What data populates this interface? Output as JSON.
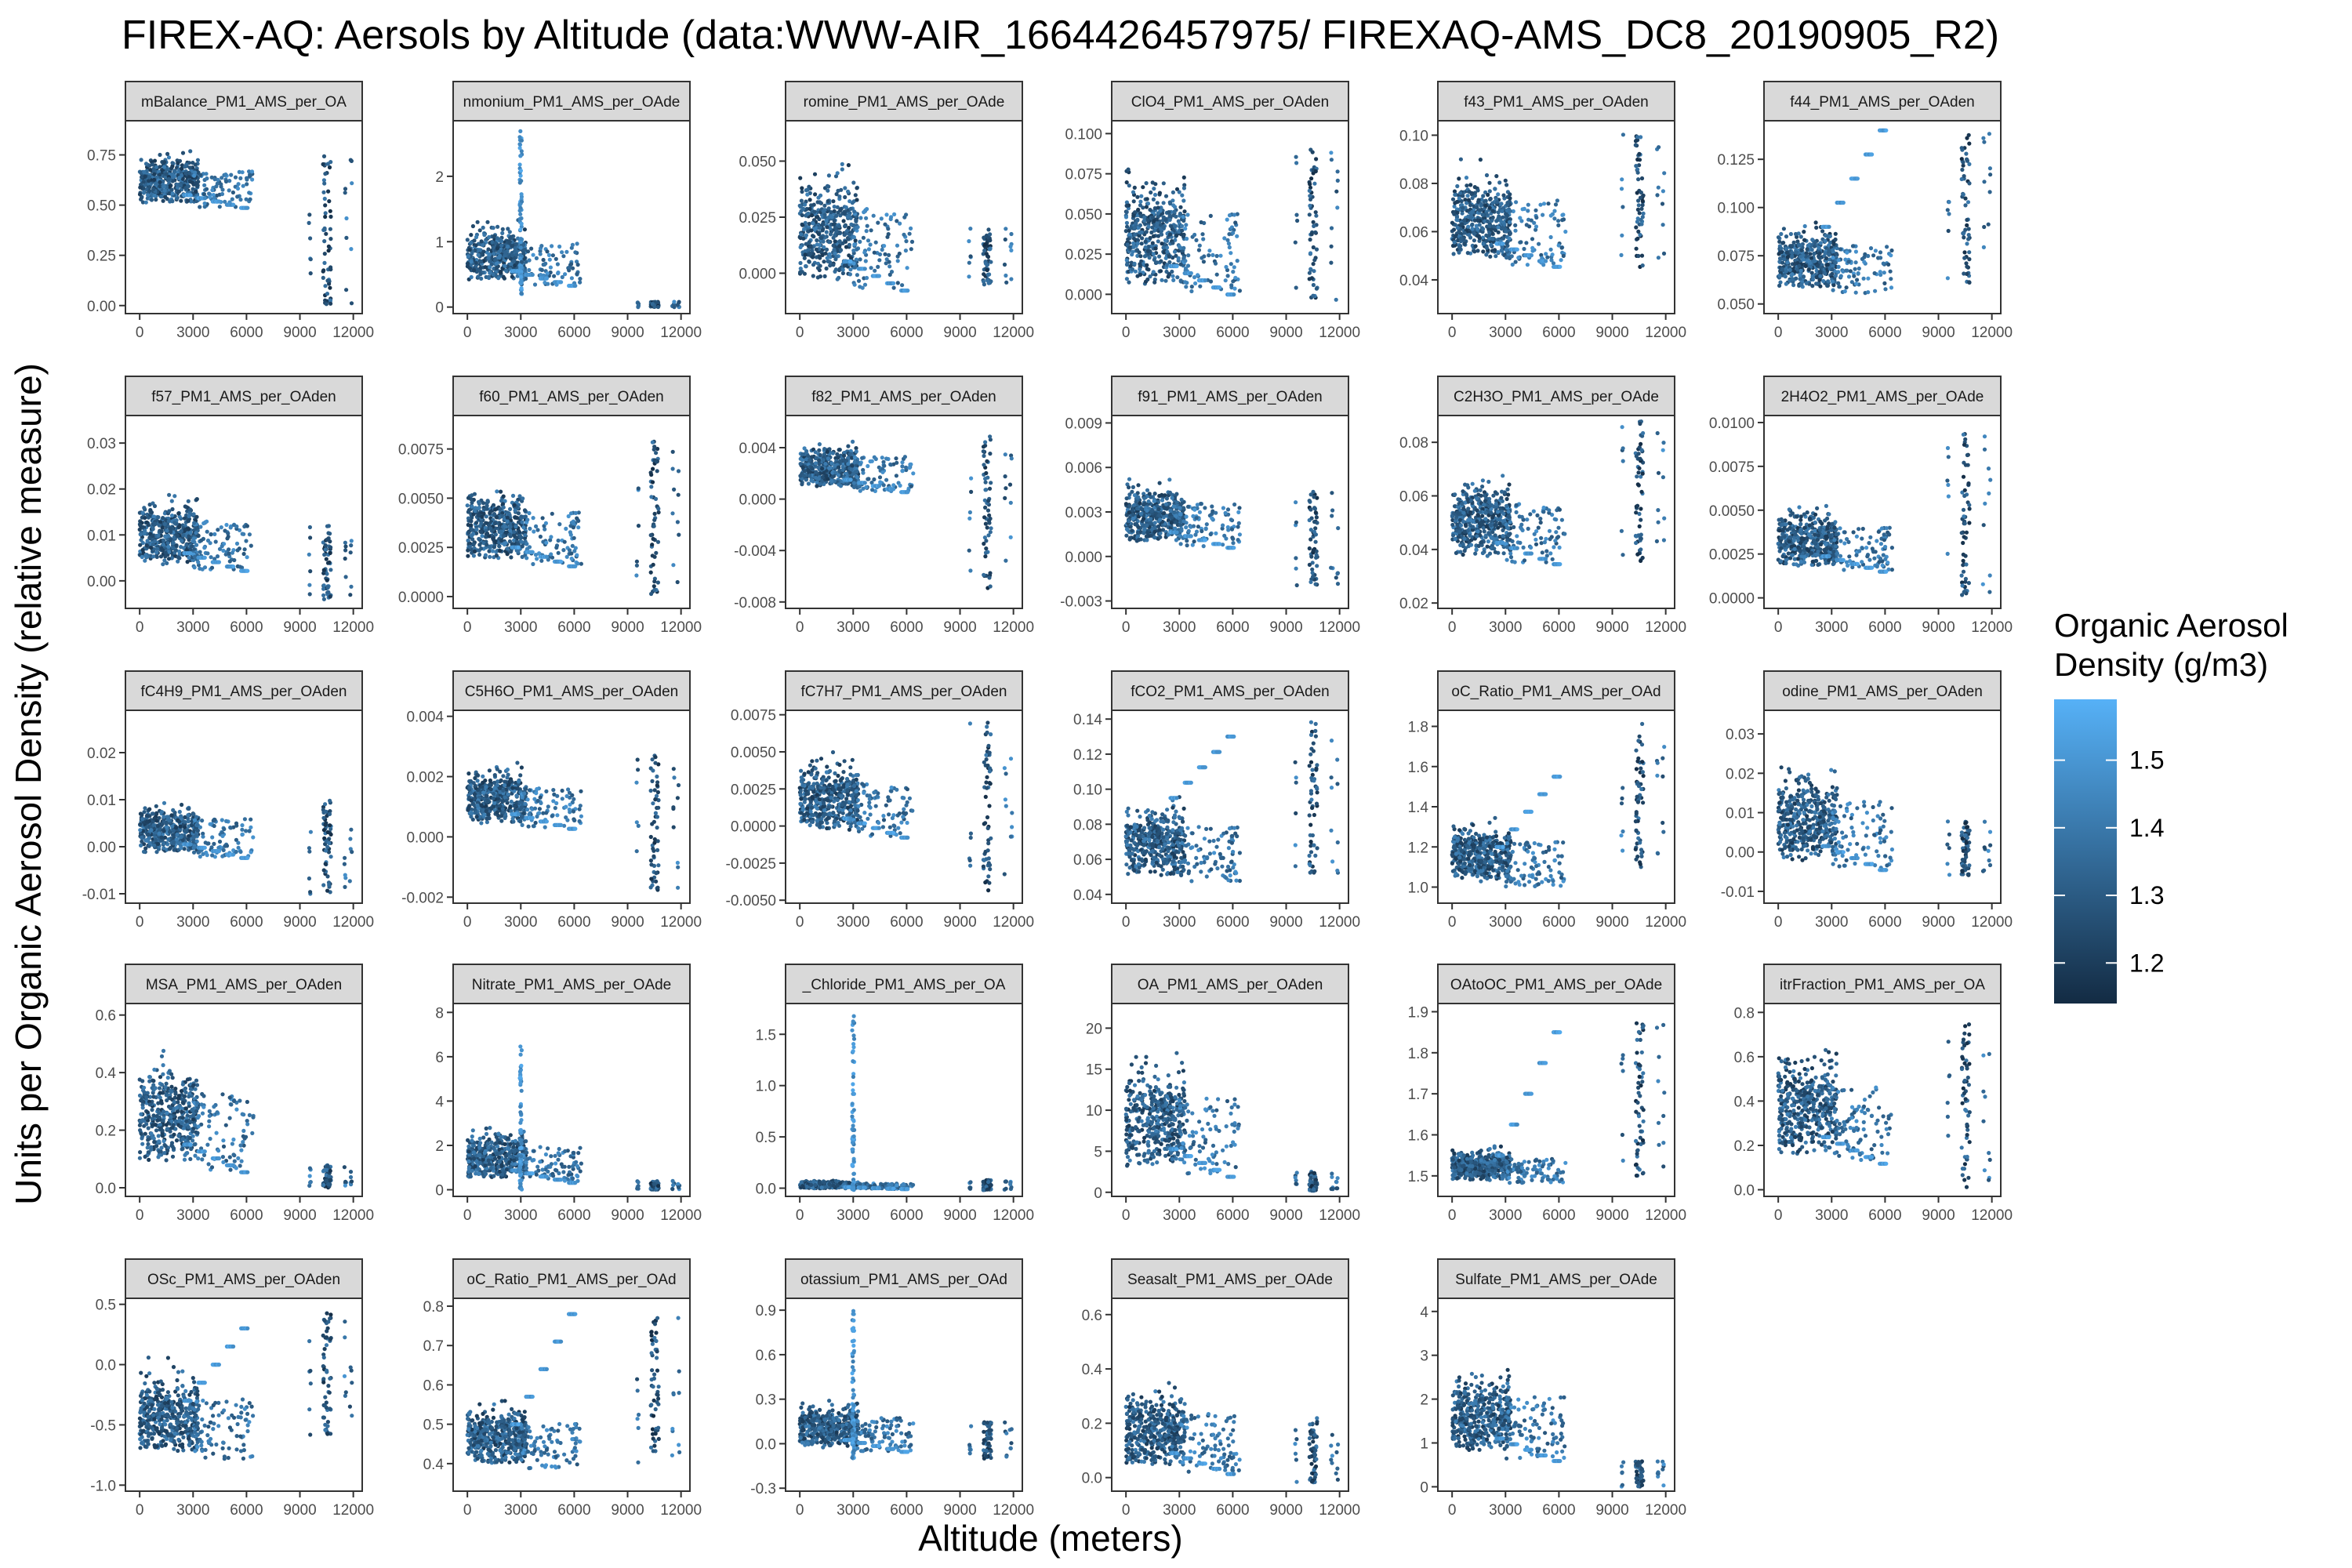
{
  "chart_data": {
    "type": "scatter",
    "title": "FIREX-AQ: Aersols by Altitude (data:WWW-AIR_1664426457975/ FIREXAQ-AMS_DC8_20190905_R2)",
    "xlabel": "Altitude (meters)",
    "ylabel": "Units per Organic Aerosol Density (relative measure)",
    "x_ticks": [
      "0",
      "3000",
      "6000",
      "9000",
      "12000"
    ],
    "xlim": [
      -800,
      12500
    ],
    "color_scale": {
      "title_lines": [
        "Organic Aerosol",
        "Density (g/m3)"
      ],
      "ticks": [
        "1.2",
        "1.3",
        "1.4",
        "1.5"
      ],
      "low": 1.14,
      "high": 1.59,
      "low_color": "#132B43",
      "high_color": "#56B1F7"
    },
    "panels": [
      {
        "strip": "mBalance_PM1_AMS_per_OA",
        "y_ticks": [
          "0.00",
          "0.25",
          "0.50",
          "0.75"
        ],
        "ylim": [
          -0.04,
          0.92
        ],
        "low_band": [
          0.45,
          0.85
        ],
        "high_band": [
          0.0,
          0.75
        ],
        "up_track": null,
        "dense_peak": null
      },
      {
        "strip": "nmonium_PM1_AMS_per_OAde",
        "y_ticks": [
          "0",
          "1",
          "2"
        ],
        "ylim": [
          -0.1,
          2.85
        ],
        "low_band": [
          0.2,
          1.6
        ],
        "high_band": [
          0.0,
          0.08
        ],
        "up_track": null,
        "dense_peak": [
          3000,
          2.7
        ]
      },
      {
        "strip": "romine_PM1_AMS_per_OAde",
        "y_ticks": [
          "0.000",
          "0.025",
          "0.050"
        ],
        "ylim": [
          -0.018,
          0.068
        ],
        "low_band": [
          -0.015,
          0.066
        ],
        "high_band": [
          -0.005,
          0.02
        ],
        "up_track": null,
        "dense_peak": null
      },
      {
        "strip": "ClO4_PM1_AMS_per_OAden",
        "y_ticks": [
          "0.000",
          "0.025",
          "0.050",
          "0.075",
          "0.100"
        ],
        "ylim": [
          -0.012,
          0.108
        ],
        "low_band": [
          -0.01,
          0.1
        ],
        "high_band": [
          -0.005,
          0.09
        ],
        "up_track": null,
        "dense_peak": null
      },
      {
        "strip": "f43_PM1_AMS_per_OAden",
        "y_ticks": [
          "0.04",
          "0.06",
          "0.08",
          "0.10"
        ],
        "ylim": [
          0.026,
          0.106
        ],
        "low_band": [
          0.04,
          0.1
        ],
        "high_band": [
          0.045,
          0.102
        ],
        "up_track": null,
        "dense_peak": null
      },
      {
        "strip": "f44_PM1_AMS_per_OAden",
        "y_ticks": [
          "0.050",
          "0.075",
          "0.100",
          "0.125"
        ],
        "ylim": [
          0.045,
          0.145
        ],
        "low_band": [
          0.05,
          0.105
        ],
        "high_band": [
          0.06,
          0.14
        ],
        "up_track": [
          0.09,
          0.14
        ],
        "dense_peak": null
      },
      {
        "strip": "f57_PM1_AMS_per_OAden",
        "y_ticks": [
          "0.00",
          "0.01",
          "0.02",
          "0.03"
        ],
        "ylim": [
          -0.006,
          0.036
        ],
        "low_band": [
          0.0,
          0.024
        ],
        "high_band": [
          -0.004,
          0.012
        ],
        "up_track": null,
        "dense_peak": null
      },
      {
        "strip": "f60_PM1_AMS_per_OAden",
        "y_ticks": [
          "0.0000",
          "0.0025",
          "0.0050",
          "0.0075"
        ],
        "ylim": [
          -0.0006,
          0.0092
        ],
        "low_band": [
          0.001,
          0.007
        ],
        "high_band": [
          0.0,
          0.008
        ],
        "up_track": null,
        "dense_peak": null
      },
      {
        "strip": "f82_PM1_AMS_per_OAden",
        "y_ticks": [
          "-0.008",
          "-0.004",
          "0.000",
          "0.004"
        ],
        "ylim": [
          -0.0085,
          0.0065
        ],
        "low_band": [
          0.0,
          0.006
        ],
        "high_band": [
          -0.007,
          0.005
        ],
        "up_track": null,
        "dense_peak": null
      },
      {
        "strip": "f91_PM1_AMS_per_OAden",
        "y_ticks": [
          "-0.003",
          "0.000",
          "0.003",
          "0.006",
          "0.009"
        ],
        "ylim": [
          -0.0035,
          0.0095
        ],
        "low_band": [
          0.0,
          0.0065
        ],
        "high_band": [
          -0.002,
          0.0045
        ],
        "up_track": null,
        "dense_peak": null
      },
      {
        "strip": "C2H3O_PM1_AMS_per_OAde",
        "y_ticks": [
          "0.02",
          "0.04",
          "0.06",
          "0.08"
        ],
        "ylim": [
          0.018,
          0.09
        ],
        "low_band": [
          0.03,
          0.08
        ],
        "high_band": [
          0.035,
          0.088
        ],
        "up_track": null,
        "dense_peak": null
      },
      {
        "strip": "2H4O2_PM1_AMS_per_OAde",
        "y_ticks": [
          "0.0000",
          "0.0025",
          "0.0050",
          "0.0075",
          "0.0100"
        ],
        "ylim": [
          -0.0006,
          0.0104
        ],
        "low_band": [
          0.001,
          0.0065
        ],
        "high_band": [
          0.0,
          0.0095
        ],
        "up_track": null,
        "dense_peak": null
      },
      {
        "strip": "fC4H9_PM1_AMS_per_OAden",
        "y_ticks": [
          "-0.01",
          "0.00",
          "0.01",
          "0.02"
        ],
        "ylim": [
          -0.012,
          0.029
        ],
        "low_band": [
          -0.004,
          0.014
        ],
        "high_band": [
          -0.01,
          0.01
        ],
        "up_track": null,
        "dense_peak": null
      },
      {
        "strip": "C5H6O_PM1_AMS_per_OAden",
        "y_ticks": [
          "-0.002",
          "0.000",
          "0.002",
          "0.004"
        ],
        "ylim": [
          -0.0022,
          0.0042
        ],
        "low_band": [
          0.0,
          0.003
        ],
        "high_band": [
          -0.0018,
          0.0028
        ],
        "up_track": null,
        "dense_peak": null
      },
      {
        "strip": "fC7H7_PM1_AMS_per_OAden",
        "y_ticks": [
          "-0.0050",
          "-0.0025",
          "0.0000",
          "0.0025",
          "0.0050",
          "0.0075"
        ],
        "ylim": [
          -0.0052,
          0.0078
        ],
        "low_band": [
          -0.0015,
          0.0065
        ],
        "high_band": [
          -0.0045,
          0.0072
        ],
        "up_track": null,
        "dense_peak": null
      },
      {
        "strip": "fCO2_PM1_AMS_per_OAden",
        "y_ticks": [
          "0.04",
          "0.06",
          "0.08",
          "0.10",
          "0.12",
          "0.14"
        ],
        "ylim": [
          0.035,
          0.145
        ],
        "low_band": [
          0.04,
          0.11
        ],
        "high_band": [
          0.05,
          0.14
        ],
        "up_track": [
          0.095,
          0.13
        ],
        "dense_peak": null
      },
      {
        "strip": "oC_Ratio_PM1_AMS_per_OAd",
        "y_ticks": [
          "1.0",
          "1.2",
          "1.4",
          "1.6",
          "1.8"
        ],
        "ylim": [
          0.92,
          1.88
        ],
        "low_band": [
          0.95,
          1.45
        ],
        "high_band": [
          1.1,
          1.82
        ],
        "up_track": [
          1.2,
          1.55
        ],
        "dense_peak": null
      },
      {
        "strip": "odine_PM1_AMS_per_OAden",
        "y_ticks": [
          "-0.01",
          "0.00",
          "0.01",
          "0.02",
          "0.03"
        ],
        "ylim": [
          -0.013,
          0.036
        ],
        "low_band": [
          -0.008,
          0.03
        ],
        "high_band": [
          -0.006,
          0.008
        ],
        "up_track": null,
        "dense_peak": null
      },
      {
        "strip": "MSA_PM1_AMS_per_OAden",
        "y_ticks": [
          "0.0",
          "0.2",
          "0.4",
          "0.6"
        ],
        "ylim": [
          -0.03,
          0.64
        ],
        "low_band": [
          0.0,
          0.6
        ],
        "high_band": [
          0.0,
          0.08
        ],
        "up_track": null,
        "dense_peak": null
      },
      {
        "strip": "Nitrate_PM1_AMS_per_OAde",
        "y_ticks": [
          "0",
          "2",
          "4",
          "6",
          "8"
        ],
        "ylim": [
          -0.3,
          8.4
        ],
        "low_band": [
          0.0,
          3.5
        ],
        "high_band": [
          0.0,
          0.4
        ],
        "up_track": null,
        "dense_peak": [
          3000,
          7.0
        ]
      },
      {
        "strip": "_Chloride_PM1_AMS_per_OA",
        "y_ticks": [
          "0.0",
          "0.5",
          "1.0",
          "1.5"
        ],
        "ylim": [
          -0.08,
          1.8
        ],
        "low_band": [
          -0.02,
          0.1
        ],
        "high_band": [
          -0.02,
          0.08
        ],
        "up_track": null,
        "dense_peak": [
          3000,
          1.7
        ]
      },
      {
        "strip": "OA_PM1_AMS_per_OAden",
        "y_ticks": [
          "0",
          "5",
          "10",
          "15",
          "20"
        ],
        "ylim": [
          -0.5,
          23
        ],
        "low_band": [
          0.0,
          21.0
        ],
        "high_band": [
          0.0,
          2.5
        ],
        "up_track": null,
        "dense_peak": null
      },
      {
        "strip": "OAtoOC_PM1_AMS_per_OAde",
        "y_ticks": [
          "1.5",
          "1.6",
          "1.7",
          "1.8",
          "1.9"
        ],
        "ylim": [
          1.45,
          1.92
        ],
        "low_band": [
          1.47,
          1.6
        ],
        "high_band": [
          1.5,
          1.88
        ],
        "up_track": [
          1.55,
          1.85
        ],
        "dense_peak": null
      },
      {
        "strip": "itrFraction_PM1_AMS_per_OA",
        "y_ticks": [
          "0.0",
          "0.2",
          "0.4",
          "0.6",
          "0.8"
        ],
        "ylim": [
          -0.03,
          0.84
        ],
        "low_band": [
          0.05,
          0.8
        ],
        "high_band": [
          0.0,
          0.75
        ],
        "up_track": null,
        "dense_peak": null
      },
      {
        "strip": "OSc_PM1_AMS_per_OAden",
        "y_ticks": [
          "-1.0",
          "-0.5",
          "0.0",
          "0.5"
        ],
        "ylim": [
          -1.05,
          0.55
        ],
        "low_band": [
          -0.9,
          0.25
        ],
        "high_band": [
          -0.6,
          0.45
        ],
        "up_track": [
          -0.3,
          0.3
        ],
        "dense_peak": null
      },
      {
        "strip": "oC_Ratio_PM1_AMS_per_OAd",
        "y_ticks": [
          "0.4",
          "0.5",
          "0.6",
          "0.7",
          "0.8"
        ],
        "ylim": [
          0.33,
          0.82
        ],
        "low_band": [
          0.36,
          0.62
        ],
        "high_band": [
          0.4,
          0.79
        ],
        "up_track": [
          0.5,
          0.78
        ],
        "dense_peak": null
      },
      {
        "strip": "otassium_PM1_AMS_per_OAd",
        "y_ticks": [
          "-0.3",
          "0.0",
          "0.3",
          "0.6",
          "0.9"
        ],
        "ylim": [
          -0.32,
          0.98
        ],
        "low_band": [
          -0.1,
          0.4
        ],
        "high_band": [
          -0.1,
          0.15
        ],
        "up_track": null,
        "dense_peak": [
          3000,
          0.9
        ]
      },
      {
        "strip": "Seasalt_PM1_AMS_per_OAde",
        "y_ticks": [
          "0.0",
          "0.2",
          "0.4",
          "0.6"
        ],
        "ylim": [
          -0.05,
          0.66
        ],
        "low_band": [
          -0.03,
          0.45
        ],
        "high_band": [
          -0.02,
          0.22
        ],
        "up_track": null,
        "dense_peak": null
      },
      {
        "strip": "Sulfate_PM1_AMS_per_OAde",
        "y_ticks": [
          "0",
          "1",
          "2",
          "3",
          "4"
        ],
        "ylim": [
          -0.1,
          4.3
        ],
        "low_band": [
          0.3,
          3.5
        ],
        "high_band": [
          0.0,
          0.6
        ],
        "up_track": null,
        "dense_peak": null
      }
    ]
  }
}
